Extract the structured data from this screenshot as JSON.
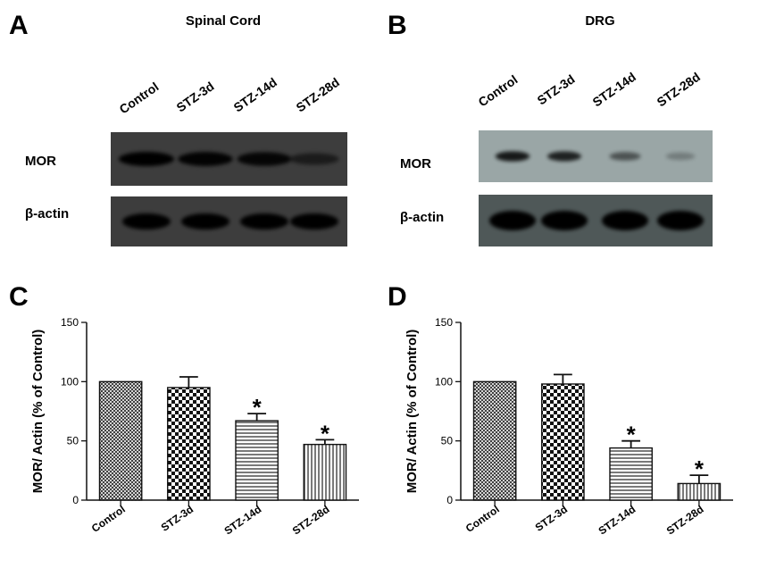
{
  "panels": [
    {
      "letter": "A",
      "kind": "western-blot",
      "title": "Spinal Cord",
      "lanes": [
        "Control",
        "STZ-3d",
        "STZ-14d",
        "STZ-28d"
      ],
      "rows": [
        {
          "label": "MOR",
          "band_intensity": [
            1.0,
            0.95,
            0.9,
            0.55
          ]
        },
        {
          "label": "β-actin",
          "band_intensity": [
            1.0,
            1.0,
            1.0,
            1.0
          ]
        }
      ],
      "membrane_color": "#3d3d3d"
    },
    {
      "letter": "B",
      "kind": "western-blot",
      "title": "DRG",
      "lanes": [
        "Control",
        "STZ-3d",
        "STZ-14d",
        "STZ-28d"
      ],
      "rows": [
        {
          "label": "MOR",
          "band_intensity": [
            0.85,
            0.8,
            0.5,
            0.25
          ]
        },
        {
          "label": "β-actin",
          "band_intensity": [
            1.0,
            1.0,
            1.0,
            1.0
          ]
        }
      ],
      "membrane_colors": [
        "#9aa6a6",
        "#4f5858"
      ]
    },
    {
      "letter": "C",
      "kind": "bar-chart"
    },
    {
      "letter": "D",
      "kind": "bar-chart"
    }
  ],
  "chart_data": [
    {
      "type": "bar",
      "panel": "C",
      "categories": [
        "Control",
        "STZ-3d",
        "STZ-14d",
        "STZ-28d"
      ],
      "values": [
        100,
        95,
        67,
        47
      ],
      "errors": [
        0,
        9,
        6,
        4
      ],
      "significance": [
        "",
        "",
        "*",
        "*"
      ],
      "patterns": [
        "crosshatch",
        "checker",
        "horizontal-lines",
        "vertical-lines"
      ],
      "ylabel": "MOR/ Actin (% of Control)",
      "xlabel": "",
      "ylim": [
        0,
        150
      ],
      "yticks": [
        0,
        50,
        100,
        150
      ],
      "grid": false
    },
    {
      "type": "bar",
      "panel": "D",
      "categories": [
        "Control",
        "STZ-3d",
        "STZ-14d",
        "STZ-28d"
      ],
      "values": [
        100,
        98,
        44,
        14
      ],
      "errors": [
        0,
        8,
        6,
        7
      ],
      "significance": [
        "",
        "",
        "*",
        "*"
      ],
      "patterns": [
        "crosshatch",
        "checker",
        "horizontal-lines",
        "vertical-lines"
      ],
      "ylabel": "MOR/ Actin (% of Control)",
      "xlabel": "",
      "ylim": [
        0,
        150
      ],
      "yticks": [
        0,
        50,
        100,
        150
      ],
      "grid": false
    }
  ]
}
